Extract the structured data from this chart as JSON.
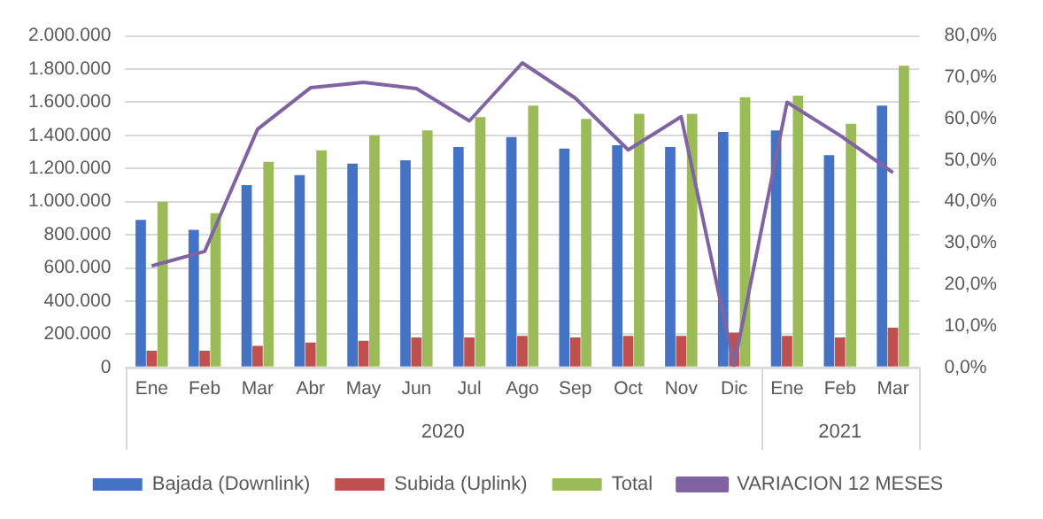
{
  "chart_data": {
    "type": "bar",
    "categories": [
      "Ene",
      "Feb",
      "Mar",
      "Abr",
      "May",
      "Jun",
      "Jul",
      "Ago",
      "Sep",
      "Oct",
      "Nov",
      "Dic",
      "Ene",
      "Feb",
      "Mar"
    ],
    "series": [
      {
        "name": "Bajada (Downlink)",
        "color": "#4472c4",
        "values": [
          890000,
          830000,
          1100000,
          1160000,
          1230000,
          1250000,
          1330000,
          1390000,
          1320000,
          1340000,
          1330000,
          1420000,
          1430000,
          1280000,
          1580000
        ]
      },
      {
        "name": "Subida (Uplink)",
        "color": "#c0504d",
        "values": [
          100000,
          100000,
          130000,
          150000,
          160000,
          180000,
          180000,
          190000,
          180000,
          190000,
          190000,
          210000,
          190000,
          180000,
          240000
        ]
      },
      {
        "name": "Total",
        "color": "#9bbb59",
        "values": [
          1000000,
          930000,
          1240000,
          1310000,
          1400000,
          1430000,
          1510000,
          1580000,
          1500000,
          1530000,
          1530000,
          1630000,
          1640000,
          1470000,
          1820000
        ]
      },
      {
        "name": "VARIACION 12 MESES",
        "color": "#8064a2",
        "type": "line",
        "axis": "y2",
        "values": [
          24.5,
          28,
          57.5,
          67.5,
          68.8,
          67.3,
          59.5,
          73.5,
          65,
          52.5,
          60.5,
          0.5,
          64,
          56,
          47
        ]
      }
    ],
    "annotations": [
      "2020",
      "2021"
    ],
    "ylim": [
      0,
      2000000
    ],
    "yticks": [
      {
        "value": 0,
        "label": "0"
      },
      {
        "value": 200000,
        "label": "200.000"
      },
      {
        "value": 400000,
        "label": "400.000"
      },
      {
        "value": 600000,
        "label": "600.000"
      },
      {
        "value": 800000,
        "label": "800.000"
      },
      {
        "value": 1000000,
        "label": "1.000.000"
      },
      {
        "value": 1200000,
        "label": "1.200.000"
      },
      {
        "value": 1400000,
        "label": "1.400.000"
      },
      {
        "value": 1600000,
        "label": "1.600.000"
      },
      {
        "value": 1800000,
        "label": "1.800.000"
      },
      {
        "value": 2000000,
        "label": "2.000.000"
      }
    ],
    "y2lim": [
      0,
      80
    ],
    "y2ticks": [
      {
        "value": 0,
        "label": "0,0%"
      },
      {
        "value": 10,
        "label": "10,0%"
      },
      {
        "value": 20,
        "label": "20,0%"
      },
      {
        "value": 30,
        "label": "30,0%"
      },
      {
        "value": 40,
        "label": "40,0%"
      },
      {
        "value": 50,
        "label": "50,0%"
      },
      {
        "value": 60,
        "label": "60,0%"
      },
      {
        "value": 70,
        "label": "70,0%"
      },
      {
        "value": 80,
        "label": "80,0%"
      }
    ],
    "grid": "y",
    "legend": "bottom",
    "marker": "none",
    "line_style": "solid"
  }
}
